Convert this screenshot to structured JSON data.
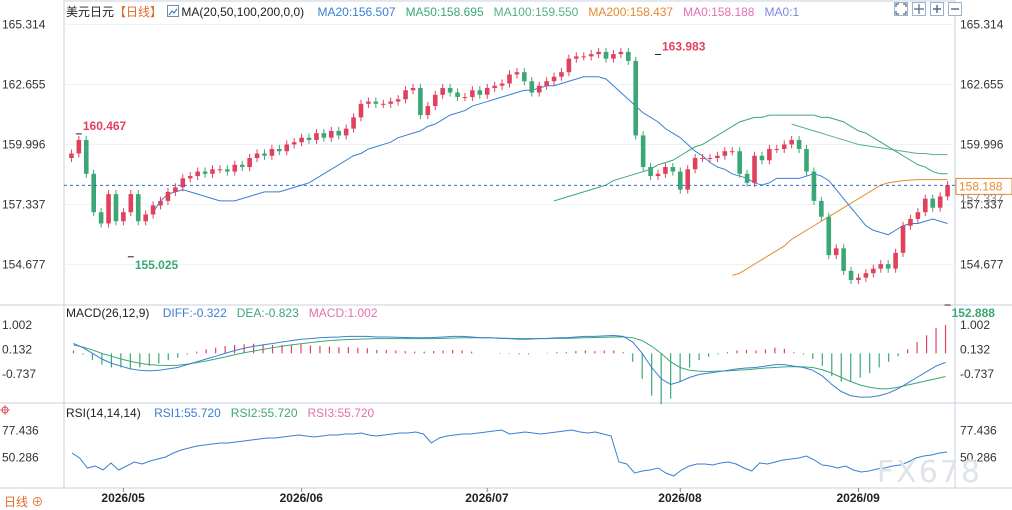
{
  "chart_data": [
    {
      "type": "candlestick",
      "title": "美元日元",
      "period": "日线",
      "period_menu": "▼",
      "indicator_label": "MA(20,50,100,200,0,0)",
      "ma_values": [
        {
          "label": "MA20:156.507",
          "color": "#3a7fd5"
        },
        {
          "label": "MA50:158.695",
          "color": "#3ba776"
        },
        {
          "label": "MA100:159.550",
          "color": "#56b08a"
        },
        {
          "label": "MA200:158.437",
          "color": "#e58a2e"
        },
        {
          "label": "MA0:158.188",
          "color": "#e36fb0"
        },
        {
          "label": "MA0:1",
          "color": "#7a86e0"
        }
      ],
      "ylim": [
        153.2,
        165.6
      ],
      "yticks": [
        "165.314",
        "162.655",
        "159.996",
        "157.337",
        "154.677"
      ],
      "y_tick_values": [
        165.314,
        162.655,
        159.996,
        157.337,
        154.677
      ],
      "current_price": "158.188",
      "current_price_value": 158.188,
      "current_price_label_right": "158.188",
      "partial_tick_right": "157.337",
      "annotations": [
        {
          "text": "160.467",
          "value": 160.467,
          "index": 1,
          "kind": "high"
        },
        {
          "text": "155.025",
          "value": 155.025,
          "index": 8,
          "kind": "low"
        },
        {
          "text": "163.983",
          "value": 163.983,
          "index": 79,
          "kind": "high"
        },
        {
          "text": "152.888",
          "value": 152.888,
          "index": 118,
          "kind": "low"
        }
      ],
      "x_labels": [
        {
          "text": "2026/05",
          "index": 7
        },
        {
          "text": "2026/06",
          "index": 31
        },
        {
          "text": "2026/07",
          "index": 56
        },
        {
          "text": "2026/08",
          "index": 82
        },
        {
          "text": "2026/09",
          "index": 106
        }
      ],
      "closes": [
        159.6,
        160.2,
        158.7,
        157.0,
        156.5,
        157.8,
        156.6,
        157.0,
        157.8,
        156.6,
        156.9,
        157.3,
        157.5,
        157.9,
        158.1,
        158.5,
        158.6,
        158.8,
        158.7,
        158.9,
        158.9,
        158.8,
        159.1,
        159.0,
        159.4,
        159.6,
        159.5,
        159.8,
        159.7,
        160.0,
        160.1,
        160.3,
        160.2,
        160.5,
        160.3,
        160.6,
        160.4,
        160.7,
        161.2,
        161.8,
        161.9,
        161.8,
        161.8,
        161.9,
        162.0,
        162.4,
        162.5,
        161.3,
        161.7,
        162.2,
        162.5,
        162.3,
        162.1,
        162.1,
        162.4,
        162.2,
        162.5,
        162.6,
        162.7,
        163.1,
        163.2,
        162.8,
        162.3,
        162.6,
        162.8,
        163.0,
        163.2,
        163.8,
        163.9,
        163.9,
        164.0,
        164.1,
        163.8,
        164.0,
        164.1,
        163.7,
        160.4,
        159.0,
        158.6,
        158.7,
        159.0,
        158.8,
        158.0,
        158.9,
        159.4,
        159.4,
        159.4,
        159.5,
        159.7,
        159.7,
        158.7,
        158.3,
        159.5,
        159.3,
        159.8,
        159.8,
        160.0,
        160.2,
        159.8,
        158.8,
        157.5,
        156.8,
        155.1,
        155.4,
        154.4,
        154.0,
        154.1,
        154.3,
        154.5,
        154.7,
        154.5,
        155.2,
        156.4,
        156.7,
        157.0,
        157.6,
        157.2,
        157.7,
        158.2
      ],
      "ma20": [
        157.0,
        157.5,
        157.8,
        157.9,
        158.0,
        157.9,
        157.8,
        157.7,
        157.6,
        157.5,
        157.5,
        157.5,
        157.6,
        157.7,
        157.8,
        157.9,
        157.9,
        157.9,
        158.0,
        158.1,
        158.2,
        158.3,
        158.5,
        158.7,
        158.9,
        159.1,
        159.3,
        159.5,
        159.6,
        159.8,
        159.9,
        160.0,
        160.1,
        160.3,
        160.4,
        160.5,
        160.6,
        160.8,
        160.9,
        161.1,
        161.3,
        161.4,
        161.5,
        161.7,
        161.8,
        161.9,
        162.0,
        162.1,
        162.2,
        162.3,
        162.4,
        162.4,
        162.5,
        162.6,
        162.6,
        162.7,
        162.8,
        162.9,
        163.0,
        163.0,
        163.0,
        162.9,
        162.6,
        162.3,
        162.0,
        161.7,
        161.4,
        161.2,
        161.0,
        160.7,
        160.5,
        160.3,
        160.0,
        159.7,
        159.5,
        159.2,
        159.0,
        158.9,
        158.7,
        158.6,
        158.5,
        158.3,
        158.2,
        158.3,
        158.5,
        158.5,
        158.5,
        158.5,
        158.6,
        158.7,
        158.6,
        158.4,
        158.0,
        157.6,
        157.2,
        156.8,
        156.4,
        156.2,
        156.1,
        156.0,
        156.2,
        156.4,
        156.5,
        156.5,
        156.6,
        156.7,
        156.6,
        156.5
      ],
      "ma50": [
        157.5,
        157.6,
        157.7,
        157.8,
        157.9,
        158.0,
        158.1,
        158.2,
        158.4,
        158.5,
        158.6,
        158.7,
        158.8,
        158.9,
        159.1,
        159.2,
        159.3,
        159.5,
        159.7,
        159.9,
        160.0,
        160.2,
        160.4,
        160.6,
        160.8,
        161.0,
        161.1,
        161.2,
        161.2,
        161.3,
        161.3,
        161.3,
        161.3,
        161.3,
        161.3,
        161.3,
        161.2,
        161.2,
        161.1,
        161.0,
        160.8,
        160.6,
        160.5,
        160.3,
        160.1,
        159.9,
        159.7,
        159.5,
        159.3,
        159.1,
        159.0,
        158.8,
        158.7,
        158.7
      ],
      "ma100": [
        160.9,
        160.8,
        160.7,
        160.6,
        160.5,
        160.4,
        160.3,
        160.2,
        160.1,
        160.0,
        159.95,
        159.9,
        159.85,
        159.8,
        159.75,
        159.7,
        159.65,
        159.6,
        159.6,
        159.55,
        159.55,
        159.55
      ],
      "ma200": [
        154.2,
        154.3,
        154.5,
        154.7,
        154.9,
        155.1,
        155.3,
        155.5,
        155.8,
        156.0,
        156.2,
        156.4,
        156.6,
        156.8,
        157.0,
        157.2,
        157.4,
        157.6,
        157.8,
        158.0,
        158.2,
        158.3,
        158.35,
        158.4,
        158.42,
        158.44,
        158.44,
        158.44,
        158.44,
        158.44
      ],
      "candle_up_color": "#e0425e",
      "candle_down_color": "#3ba776",
      "dash_line_color": "#2a6ad2"
    },
    {
      "type": "bar",
      "title": "MACD(26,12,9)",
      "legend": [
        {
          "label": "DIFF:-0.322",
          "color": "#3a7fd5"
        },
        {
          "label": "DEA:-0.823",
          "color": "#3ba776"
        },
        {
          "label": "MACD:1.002",
          "color": "#e36fb0"
        }
      ],
      "yticks": [
        "1.002",
        "0.132",
        "-0.737"
      ],
      "y_tick_values": [
        1.002,
        0.132,
        -0.737
      ],
      "ylim": [
        -1.65,
        1.25
      ],
      "diff": [
        0.35,
        0.2,
        0.0,
        -0.2,
        -0.35,
        -0.45,
        -0.55,
        -0.6,
        -0.62,
        -0.6,
        -0.55,
        -0.5,
        -0.4,
        -0.3,
        -0.2,
        -0.1,
        0.0,
        0.1,
        0.18,
        0.25,
        0.3,
        0.35,
        0.4,
        0.45,
        0.5,
        0.52,
        0.55,
        0.57,
        0.58,
        0.6,
        0.6,
        0.6,
        0.58,
        0.58,
        0.57,
        0.56,
        0.55,
        0.55,
        0.56,
        0.58,
        0.6,
        0.6,
        0.58,
        0.55,
        0.55,
        0.53,
        0.52,
        0.5,
        0.5,
        0.52,
        0.53,
        0.55,
        0.55,
        0.58,
        0.6,
        0.6,
        0.62,
        0.63,
        0.6,
        0.4,
        0.0,
        -0.5,
        -0.9,
        -1.1,
        -1.0,
        -0.85,
        -0.75,
        -0.7,
        -0.65,
        -0.6,
        -0.55,
        -0.52,
        -0.5,
        -0.45,
        -0.4,
        -0.4,
        -0.45,
        -0.5,
        -0.6,
        -0.8,
        -1.1,
        -1.35,
        -1.5,
        -1.55,
        -1.55,
        -1.5,
        -1.4,
        -1.25,
        -1.05,
        -0.85,
        -0.65,
        -0.45,
        -0.32
      ],
      "dea": [
        0.3,
        0.22,
        0.12,
        0.0,
        -0.1,
        -0.2,
        -0.28,
        -0.35,
        -0.4,
        -0.42,
        -0.43,
        -0.42,
        -0.38,
        -0.33,
        -0.27,
        -0.2,
        -0.13,
        -0.05,
        0.02,
        0.08,
        0.14,
        0.2,
        0.25,
        0.3,
        0.34,
        0.38,
        0.42,
        0.45,
        0.47,
        0.49,
        0.5,
        0.51,
        0.52,
        0.52,
        0.52,
        0.52,
        0.52,
        0.52,
        0.52,
        0.53,
        0.54,
        0.55,
        0.55,
        0.55,
        0.55,
        0.54,
        0.53,
        0.52,
        0.52,
        0.52,
        0.52,
        0.53,
        0.53,
        0.54,
        0.55,
        0.56,
        0.57,
        0.58,
        0.58,
        0.55,
        0.45,
        0.25,
        0.0,
        -0.3,
        -0.5,
        -0.6,
        -0.63,
        -0.64,
        -0.63,
        -0.62,
        -0.6,
        -0.58,
        -0.55,
        -0.52,
        -0.5,
        -0.48,
        -0.47,
        -0.48,
        -0.5,
        -0.58,
        -0.7,
        -0.85,
        -1.0,
        -1.12,
        -1.2,
        -1.25,
        -1.25,
        -1.2,
        -1.12,
        -1.05,
        -0.97,
        -0.9,
        -0.82
      ],
      "macd": [
        0.1,
        -0.04,
        -0.24,
        -0.4,
        -0.5,
        -0.5,
        -0.54,
        -0.5,
        -0.44,
        -0.36,
        -0.24,
        -0.16,
        -0.04,
        0.06,
        0.14,
        0.2,
        0.26,
        0.3,
        0.32,
        0.34,
        0.32,
        0.3,
        0.3,
        0.3,
        0.32,
        0.28,
        0.26,
        0.24,
        0.22,
        0.22,
        0.2,
        0.18,
        0.12,
        0.12,
        0.1,
        0.08,
        0.06,
        0.06,
        0.08,
        0.1,
        0.12,
        0.1,
        0.06,
        0.0,
        0.0,
        -0.02,
        -0.02,
        -0.04,
        -0.04,
        0.0,
        0.02,
        0.04,
        0.04,
        0.08,
        0.1,
        0.08,
        0.1,
        0.1,
        0.04,
        -0.3,
        -0.9,
        -1.5,
        -1.8,
        -1.6,
        -1.0,
        -0.5,
        -0.24,
        -0.12,
        -0.04,
        0.04,
        0.1,
        0.12,
        0.1,
        0.14,
        0.2,
        0.16,
        0.04,
        -0.04,
        -0.2,
        -0.44,
        -0.8,
        -1.0,
        -1.0,
        -0.86,
        -0.7,
        -0.5,
        -0.3,
        -0.1,
        0.14,
        0.4,
        0.64,
        0.9,
        1.0
      ]
    },
    {
      "type": "line",
      "title": "RSI(14,14,14)",
      "legend": [
        {
          "label": "RSI1:55.720",
          "color": "#3a7fd5"
        },
        {
          "label": "RSI2:55.720",
          "color": "#3ba776"
        },
        {
          "label": "RSI3:55.720",
          "color": "#e36fb0"
        }
      ],
      "yticks": [
        "77.436",
        "50.286"
      ],
      "y_tick_values": [
        77.436,
        50.286
      ],
      "ylim": [
        22,
        90
      ],
      "rsi": [
        55,
        50,
        40,
        42,
        38,
        45,
        38,
        42,
        46,
        44,
        47,
        49,
        51,
        55,
        58,
        60,
        62,
        63,
        64,
        65,
        65,
        66,
        67,
        68,
        69,
        70,
        70,
        71,
        72,
        73,
        72,
        71,
        72,
        73,
        73,
        74,
        74,
        75,
        73,
        72,
        73,
        74,
        75,
        75,
        76,
        74,
        65,
        70,
        72,
        73,
        74,
        74,
        75,
        76,
        77,
        78,
        74,
        75,
        76,
        75,
        74,
        75,
        76,
        77,
        78,
        76,
        75,
        76,
        74,
        72,
        46,
        44,
        35,
        37,
        38,
        40,
        35,
        32,
        38,
        42,
        44,
        44,
        43,
        45,
        46,
        44,
        40,
        37,
        45,
        44,
        46,
        48,
        49,
        50,
        52,
        48,
        43,
        42,
        40,
        42,
        38,
        36,
        37,
        39,
        40,
        42,
        43,
        46,
        50,
        52,
        53,
        55,
        56
      ]
    }
  ],
  "ui": {
    "watermark": "FX678",
    "period_tab": "日线",
    "period_tab_arrow": "⊕"
  }
}
